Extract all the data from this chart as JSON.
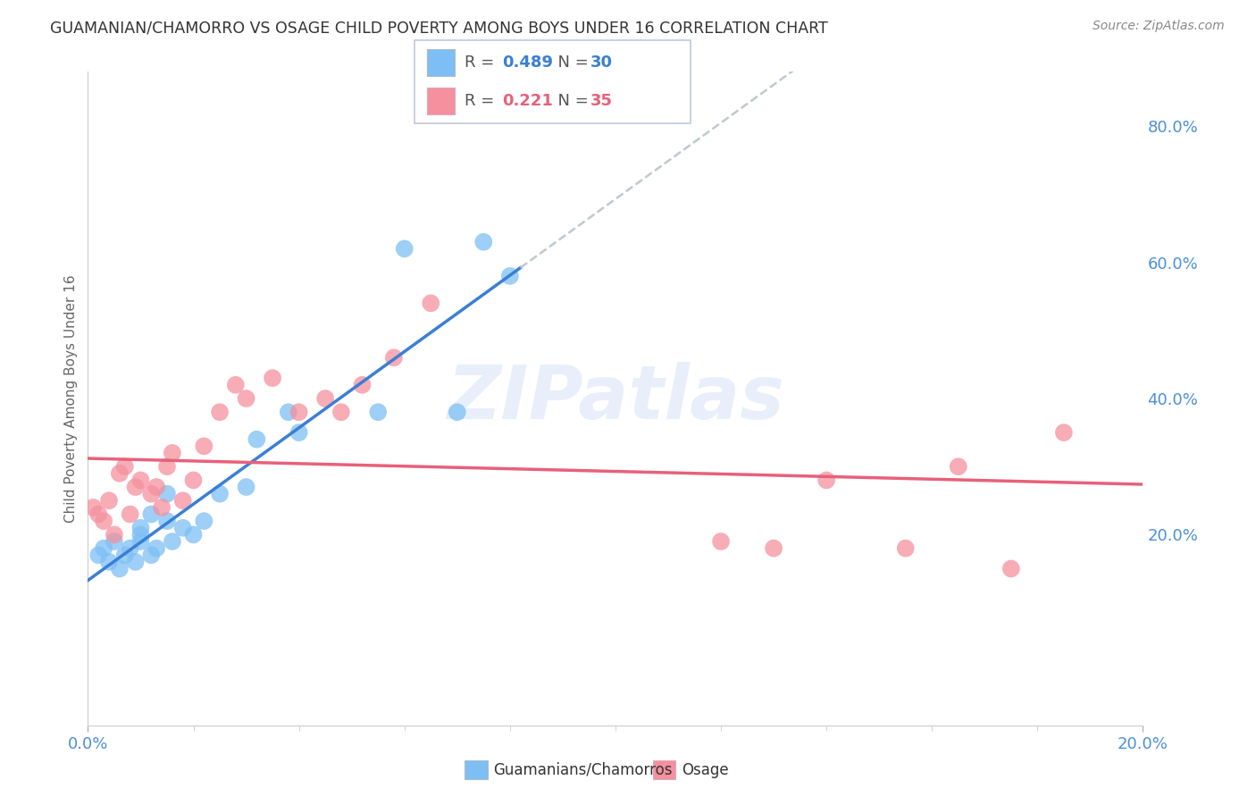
{
  "title": "GUAMANIAN/CHAMORRO VS OSAGE CHILD POVERTY AMONG BOYS UNDER 16 CORRELATION CHART",
  "source": "Source: ZipAtlas.com",
  "ylabel": "Child Poverty Among Boys Under 16",
  "xlim": [
    0.0,
    0.2
  ],
  "ylim": [
    -0.08,
    0.88
  ],
  "yticks": [
    0.0,
    0.2,
    0.4,
    0.6,
    0.8
  ],
  "ytick_labels": [
    "",
    "20.0%",
    "40.0%",
    "60.0%",
    "80.0%"
  ],
  "xticks": [
    0.0,
    0.2
  ],
  "xtick_labels": [
    "0.0%",
    "20.0%"
  ],
  "legend_entries": [
    "Guamanians/Chamorros",
    "Osage"
  ],
  "blue_color": "#7dbff5",
  "pink_color": "#f5909e",
  "blue_line_color": "#3a7fd5",
  "pink_line_color": "#e8607a",
  "dashed_line_color": "#c0c8d0",
  "R_blue": 0.489,
  "N_blue": 30,
  "R_pink": 0.221,
  "N_pink": 35,
  "watermark": "ZIPatlas",
  "blue_scatter_x": [
    0.002,
    0.003,
    0.004,
    0.005,
    0.006,
    0.007,
    0.008,
    0.009,
    0.01,
    0.01,
    0.01,
    0.012,
    0.012,
    0.013,
    0.015,
    0.015,
    0.016,
    0.018,
    0.02,
    0.022,
    0.025,
    0.03,
    0.032,
    0.038,
    0.04,
    0.055,
    0.06,
    0.07,
    0.075,
    0.08
  ],
  "blue_scatter_y": [
    0.17,
    0.18,
    0.16,
    0.19,
    0.15,
    0.17,
    0.18,
    0.16,
    0.19,
    0.2,
    0.21,
    0.17,
    0.23,
    0.18,
    0.22,
    0.26,
    0.19,
    0.21,
    0.2,
    0.22,
    0.26,
    0.27,
    0.34,
    0.38,
    0.35,
    0.38,
    0.62,
    0.38,
    0.63,
    0.58
  ],
  "pink_scatter_x": [
    0.001,
    0.002,
    0.003,
    0.004,
    0.005,
    0.006,
    0.007,
    0.008,
    0.009,
    0.01,
    0.012,
    0.013,
    0.014,
    0.015,
    0.016,
    0.018,
    0.02,
    0.022,
    0.025,
    0.028,
    0.03,
    0.035,
    0.04,
    0.045,
    0.048,
    0.052,
    0.058,
    0.065,
    0.12,
    0.13,
    0.14,
    0.155,
    0.165,
    0.175,
    0.185
  ],
  "pink_scatter_y": [
    0.24,
    0.23,
    0.22,
    0.25,
    0.2,
    0.29,
    0.3,
    0.23,
    0.27,
    0.28,
    0.26,
    0.27,
    0.24,
    0.3,
    0.32,
    0.25,
    0.28,
    0.33,
    0.38,
    0.42,
    0.4,
    0.43,
    0.38,
    0.4,
    0.38,
    0.42,
    0.46,
    0.54,
    0.19,
    0.18,
    0.28,
    0.18,
    0.3,
    0.15,
    0.35
  ],
  "background_color": "#ffffff",
  "grid_color": "#dce4f0",
  "title_color": "#333333",
  "tick_label_color": "#4a90d9",
  "axis_label_color": "#666666"
}
